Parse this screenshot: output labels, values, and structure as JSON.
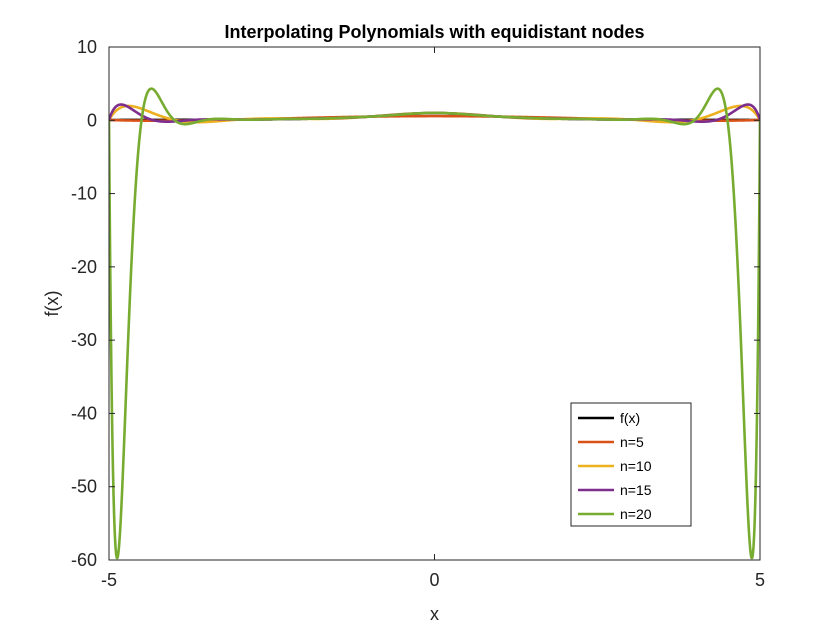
{
  "chart_data": {
    "type": "line",
    "title": "Interpolating Polynomials with equidistant nodes",
    "xlabel": "x",
    "ylabel": "f(x)",
    "xlim": [
      -5,
      5
    ],
    "ylim": [
      -60,
      10
    ],
    "xticks": [
      -5,
      0,
      5
    ],
    "yticks": [
      10,
      0,
      -10,
      -20,
      -30,
      -40,
      -50,
      -60
    ],
    "xtick_labels": [
      "-5",
      "0",
      "5"
    ],
    "ytick_labels": [
      "10",
      "0",
      "-10",
      "-20",
      "-30",
      "-40",
      "-50",
      "-60"
    ],
    "grid": false,
    "legend_position": "bottom-right",
    "series": [
      {
        "name": "f(x)",
        "color": "#000000",
        "function": "1/(1+x^2)"
      },
      {
        "name": "n=5",
        "color": "#D95319",
        "degree": 5,
        "x_range": [
          -5,
          5
        ]
      },
      {
        "name": "n=10",
        "color": "#EDB120",
        "degree": 10,
        "x_range": [
          -5,
          5
        ]
      },
      {
        "name": "n=15",
        "color": "#7E2F8E",
        "degree": 15,
        "x_range": [
          -5,
          5
        ]
      },
      {
        "name": "n=20",
        "color": "#77AC30",
        "degree": 20,
        "x_range": [
          -5,
          5
        ]
      }
    ]
  }
}
